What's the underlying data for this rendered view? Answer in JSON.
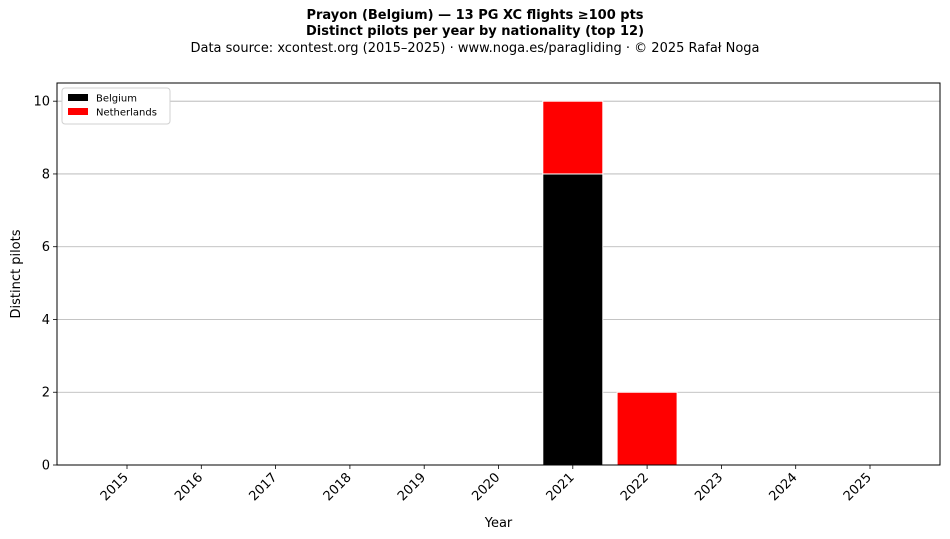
{
  "chart_data": {
    "type": "bar",
    "stacked": true,
    "title": "Prayon (Belgium)  —  13 PG XC flights ≥100 pts",
    "subtitle": "Distinct pilots per year by nationality (top 12)",
    "source": "Data source: xcontest.org (2015–2025)  ·  www.noga.es/paragliding  ·  © 2025 Rafał Noga",
    "xlabel": "Year",
    "ylabel": "Distinct pilots",
    "categories": [
      "2015",
      "2016",
      "2017",
      "2018",
      "2019",
      "2020",
      "2021",
      "2022",
      "2023",
      "2024",
      "2025"
    ],
    "series": [
      {
        "name": "Belgium",
        "color": "#000000",
        "values": [
          0,
          0,
          0,
          0,
          0,
          0,
          8,
          0,
          0,
          0,
          0
        ]
      },
      {
        "name": "Netherlands",
        "color": "#ff0000",
        "values": [
          0,
          0,
          0,
          0,
          0,
          0,
          2,
          2,
          0,
          0,
          0
        ]
      }
    ],
    "ylim": [
      0,
      10.5
    ],
    "yticks": [
      0,
      2,
      4,
      6,
      8,
      10
    ],
    "grid": "y",
    "legend": "top-left"
  }
}
